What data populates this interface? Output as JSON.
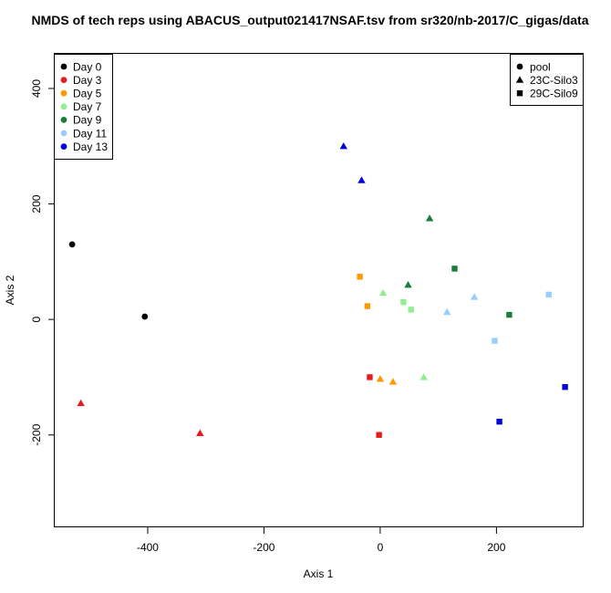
{
  "chart_data": {
    "type": "scatter",
    "title": "NMDS of tech reps using ABACUS_output021417NSAF.tsv from sr320/nb-2017/C_gigas/data",
    "xlabel": "Axis 1",
    "ylabel": "Axis 2",
    "xlim": [
      -560,
      350
    ],
    "ylim": [
      -360,
      460
    ],
    "xticks": [
      -400,
      -200,
      0,
      200
    ],
    "xtick_labels": [
      "-400",
      "-200",
      "0",
      "200"
    ],
    "yticks": [
      -200,
      0,
      200,
      400
    ],
    "ytick_labels": [
      "-200",
      "0",
      "200",
      "400"
    ],
    "grid": false,
    "legend_color": {
      "placement": "top-left",
      "entries": [
        {
          "label": "Day 0",
          "color": "#000000"
        },
        {
          "label": "Day 3",
          "color": "#e41a1c"
        },
        {
          "label": "Day 5",
          "color": "#ff9900"
        },
        {
          "label": "Day 7",
          "color": "#90ee90"
        },
        {
          "label": "Day 9",
          "color": "#1a7d3c"
        },
        {
          "label": "Day 11",
          "color": "#99ccff"
        },
        {
          "label": "Day 13",
          "color": "#0000dd"
        }
      ]
    },
    "legend_shape": {
      "placement": "top-right",
      "entries": [
        {
          "label": "pool",
          "shape": "circle"
        },
        {
          "label": "23C-Silo3",
          "shape": "triangle"
        },
        {
          "label": "29C-Silo9",
          "shape": "square"
        }
      ]
    },
    "points": [
      {
        "x": -530,
        "y": 130,
        "day": "Day 0",
        "site": "pool"
      },
      {
        "x": -405,
        "y": 5,
        "day": "Day 0",
        "site": "pool"
      },
      {
        "x": -515,
        "y": -145,
        "day": "Day 3",
        "site": "23C-Silo3"
      },
      {
        "x": -310,
        "y": -197,
        "day": "Day 3",
        "site": "23C-Silo3"
      },
      {
        "x": -18,
        "y": -100,
        "day": "Day 3",
        "site": "29C-Silo9"
      },
      {
        "x": -2,
        "y": -200,
        "day": "Day 3",
        "site": "29C-Silo9"
      },
      {
        "x": -35,
        "y": 74,
        "day": "Day 5",
        "site": "29C-Silo9"
      },
      {
        "x": -22,
        "y": 23,
        "day": "Day 5",
        "site": "29C-Silo9"
      },
      {
        "x": 0,
        "y": -103,
        "day": "Day 5",
        "site": "23C-Silo3"
      },
      {
        "x": 22,
        "y": -108,
        "day": "Day 5",
        "site": "23C-Silo3"
      },
      {
        "x": 5,
        "y": 46,
        "day": "Day 7",
        "site": "23C-Silo3"
      },
      {
        "x": 40,
        "y": 30,
        "day": "Day 7",
        "site": "29C-Silo9"
      },
      {
        "x": 53,
        "y": 17,
        "day": "Day 7",
        "site": "29C-Silo9"
      },
      {
        "x": 75,
        "y": -100,
        "day": "Day 7",
        "site": "23C-Silo3"
      },
      {
        "x": 48,
        "y": 60,
        "day": "Day 9",
        "site": "23C-Silo3"
      },
      {
        "x": 85,
        "y": 175,
        "day": "Day 9",
        "site": "23C-Silo3"
      },
      {
        "x": 128,
        "y": 88,
        "day": "Day 9",
        "site": "29C-Silo9"
      },
      {
        "x": 222,
        "y": 8,
        "day": "Day 9",
        "site": "29C-Silo9"
      },
      {
        "x": 115,
        "y": 13,
        "day": "Day 11",
        "site": "23C-Silo3"
      },
      {
        "x": 162,
        "y": 39,
        "day": "Day 11",
        "site": "23C-Silo3"
      },
      {
        "x": 197,
        "y": -37,
        "day": "Day 11",
        "site": "29C-Silo9"
      },
      {
        "x": 290,
        "y": 43,
        "day": "Day 11",
        "site": "29C-Silo9"
      },
      {
        "x": -63,
        "y": 300,
        "day": "Day 13",
        "site": "23C-Silo3"
      },
      {
        "x": -32,
        "y": 241,
        "day": "Day 13",
        "site": "23C-Silo3"
      },
      {
        "x": 205,
        "y": -177,
        "day": "Day 13",
        "site": "29C-Silo9"
      },
      {
        "x": 318,
        "y": -117,
        "day": "Day 13",
        "site": "29C-Silo9"
      }
    ]
  }
}
